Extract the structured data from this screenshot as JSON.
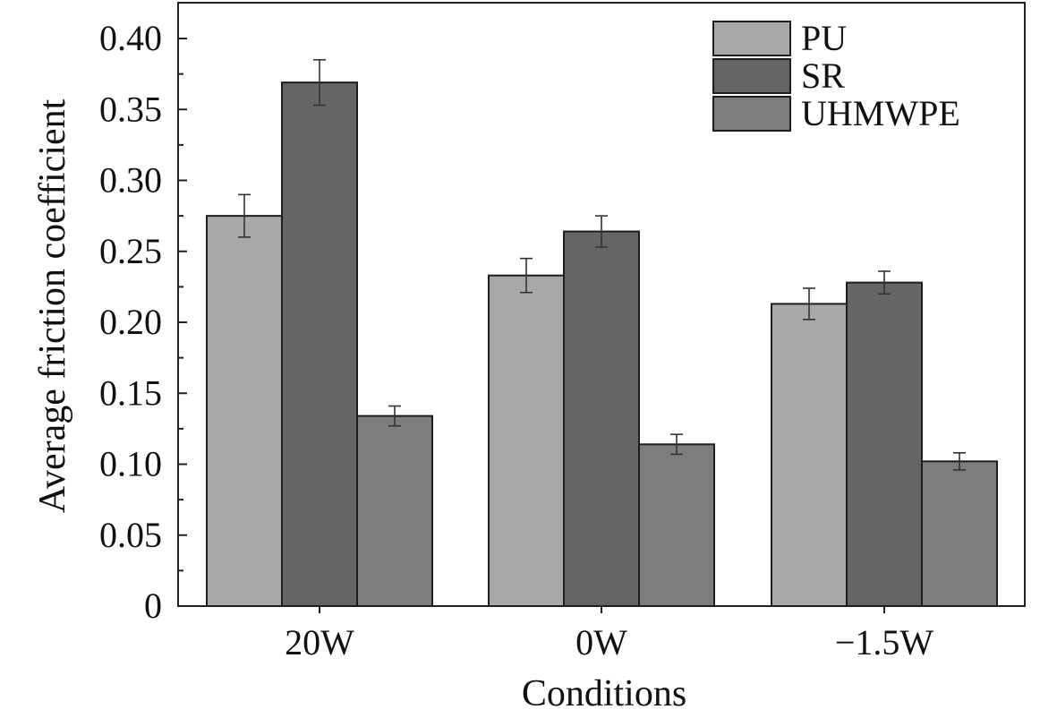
{
  "chart_data": {
    "type": "bar",
    "xlabel": "Conditions",
    "ylabel": "Average friction coefficient",
    "categories": [
      "20W",
      "0W",
      "−1.5W"
    ],
    "ylim": [
      0,
      0.42
    ],
    "yticks": [
      0,
      0.05,
      0.1,
      0.15,
      0.2,
      0.25,
      0.3,
      0.35,
      0.4
    ],
    "ytick_labels": [
      "0",
      "0.05",
      "0.10",
      "0.15",
      "0.20",
      "0.25",
      "0.30",
      "0.35",
      "0.40"
    ],
    "grid": false,
    "legend_position": "top-right",
    "series": [
      {
        "name": "PU",
        "color": "#a8a8a8",
        "values": [
          0.275,
          0.233,
          0.213
        ],
        "errors": [
          0.015,
          0.012,
          0.011
        ]
      },
      {
        "name": "SR",
        "color": "#656565",
        "values": [
          0.369,
          0.264,
          0.228
        ],
        "errors": [
          0.016,
          0.011,
          0.008
        ]
      },
      {
        "name": "UHMWPE",
        "color": "#7d7d7d",
        "values": [
          0.134,
          0.114,
          0.102
        ],
        "errors": [
          0.007,
          0.007,
          0.006
        ]
      }
    ]
  }
}
